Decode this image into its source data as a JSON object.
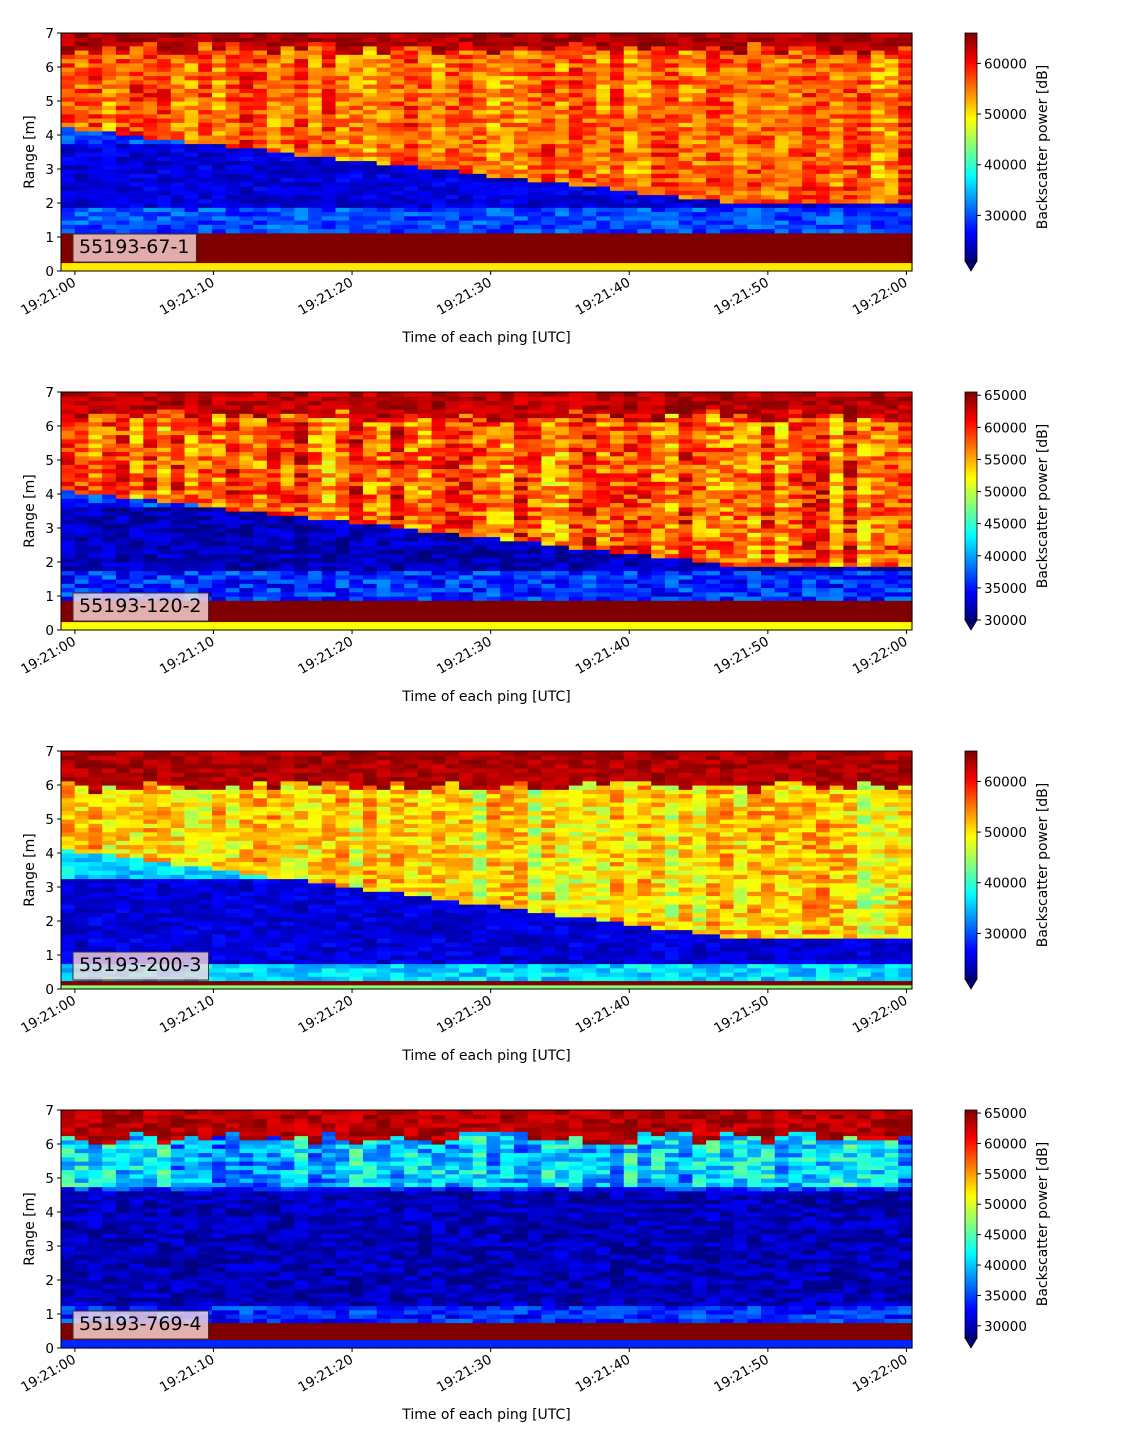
{
  "chart_data": [
    {
      "type": "heatmap",
      "panel_label": "55193-67-1",
      "xlabel": "Time of each ping [UTC]",
      "ylabel": "Range [m]",
      "x_ticks": [
        "19:21:00",
        "19:21:10",
        "19:21:20",
        "19:21:30",
        "19:21:40",
        "19:21:50",
        "19:22:00"
      ],
      "x_range_seconds": [
        -1,
        60.4
      ],
      "ylim": [
        0,
        7
      ],
      "y_ticks": [
        0,
        1,
        2,
        3,
        4,
        5,
        6,
        7
      ],
      "colorbar": {
        "label": "Backscatter power [dB]",
        "colormap": "jet",
        "range": [
          21000,
          66000
        ],
        "ticks": [
          30000,
          40000,
          50000,
          60000
        ],
        "extend": "min"
      },
      "profile": {
        "top_band_start": 6.55,
        "bottom_band": [
          0.25,
          1.1
        ],
        "dark_layer": [
          1.9,
          3.7
        ],
        "interface_start": 4.2,
        "interface_end": 2.0,
        "top_level": 56000,
        "mid_level": 30000,
        "dark_level": 25000
      }
    },
    {
      "type": "heatmap",
      "panel_label": "55193-120-2",
      "xlabel": "Time of each ping [UTC]",
      "ylabel": "Range [m]",
      "x_ticks": [
        "19:21:00",
        "19:21:10",
        "19:21:20",
        "19:21:30",
        "19:21:40",
        "19:21:50",
        "19:22:00"
      ],
      "x_range_seconds": [
        -1,
        60.4
      ],
      "ylim": [
        0,
        7
      ],
      "y_ticks": [
        0,
        1,
        2,
        3,
        4,
        5,
        6,
        7
      ],
      "colorbar": {
        "label": "Backscatter power [dB]",
        "colormap": "jet",
        "range": [
          30000,
          65500
        ],
        "ticks": [
          30000,
          35000,
          40000,
          45000,
          50000,
          55000,
          60000,
          65000
        ],
        "extend": "min"
      },
      "profile": {
        "top_band_start": 6.3,
        "bottom_band": [
          0.25,
          0.85
        ],
        "dark_layer": [
          1.8,
          3.6
        ],
        "interface_start": 4.1,
        "interface_end": 1.9,
        "top_level": 58000,
        "mid_level": 36000,
        "dark_level": 32000
      }
    },
    {
      "type": "heatmap",
      "panel_label": "55193-200-3",
      "xlabel": "Time of each ping [UTC]",
      "ylabel": "Range [m]",
      "x_ticks": [
        "19:21:00",
        "19:21:10",
        "19:21:20",
        "19:21:30",
        "19:21:40",
        "19:21:50",
        "19:22:00"
      ],
      "x_range_seconds": [
        -1,
        60.4
      ],
      "ylim": [
        0,
        7
      ],
      "y_ticks": [
        0,
        1,
        2,
        3,
        4,
        5,
        6,
        7
      ],
      "colorbar": {
        "label": "Backscatter power [dB]",
        "colormap": "jet",
        "range": [
          21000,
          66000
        ],
        "ticks": [
          30000,
          40000,
          50000,
          60000
        ],
        "extend": "min"
      },
      "profile": {
        "top_band_start": 6.0,
        "bottom_band": [
          0.15,
          0.3
        ],
        "dark_layer": [
          0.8,
          3.3
        ],
        "interface_start": 4.1,
        "interface_end": 1.5,
        "top_level": 50000,
        "mid_level": 36000,
        "dark_level": 25000
      }
    },
    {
      "type": "heatmap",
      "panel_label": "55193-769-4",
      "xlabel": "Time of each ping [UTC]",
      "ylabel": "Range [m]",
      "x_ticks": [
        "19:21:00",
        "19:21:10",
        "19:21:20",
        "19:21:30",
        "19:21:40",
        "19:21:50",
        "19:22:00"
      ],
      "x_range_seconds": [
        -1,
        60.4
      ],
      "ylim": [
        0,
        7
      ],
      "y_ticks": [
        0,
        1,
        2,
        3,
        4,
        5,
        6,
        7
      ],
      "colorbar": {
        "label": "Backscatter power [dB]",
        "colormap": "jet",
        "range": [
          28000,
          65500
        ],
        "ticks": [
          30000,
          35000,
          40000,
          45000,
          50000,
          55000,
          60000,
          65000
        ],
        "extend": "min"
      },
      "profile": {
        "top_band_start": 6.2,
        "bottom_band": [
          0.25,
          0.7
        ],
        "dark_layer": [
          1.2,
          4.6
        ],
        "interface_start": 4.7,
        "interface_end": 4.7,
        "top_level": 40000,
        "mid_level": 34000,
        "dark_level": 30000
      }
    }
  ]
}
